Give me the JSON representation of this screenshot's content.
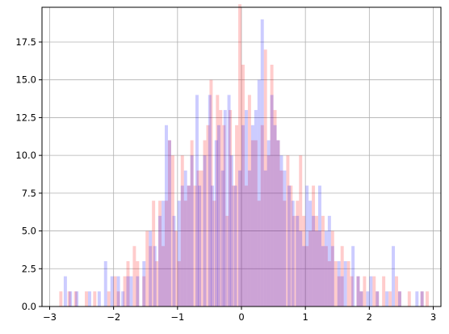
{
  "chart_data": {
    "type": "bar",
    "subtype": "overlaid-histogram",
    "title": "",
    "xlabel": "",
    "ylabel": "",
    "xlim": [
      -3.12,
      3.12
    ],
    "ylim": [
      0,
      19.8
    ],
    "grid": true,
    "bin_width": 0.05,
    "x_ticks": [
      {
        "value": -3,
        "label": "−3"
      },
      {
        "value": -2,
        "label": "−2"
      },
      {
        "value": -1,
        "label": "−1"
      },
      {
        "value": 0,
        "label": "0"
      },
      {
        "value": 1,
        "label": "1"
      },
      {
        "value": 2,
        "label": "2"
      },
      {
        "value": 3,
        "label": "3"
      }
    ],
    "y_ticks": [
      {
        "value": 0,
        "label": "0.0"
      },
      {
        "value": 2.5,
        "label": "2.5"
      },
      {
        "value": 5,
        "label": "5.0"
      },
      {
        "value": 7.5,
        "label": "7.5"
      },
      {
        "value": 10,
        "label": "10.0"
      },
      {
        "value": 12.5,
        "label": "12.5"
      },
      {
        "value": 15,
        "label": "15.0"
      },
      {
        "value": 17.5,
        "label": "17.5"
      }
    ],
    "series": [
      {
        "color": "#ff0000",
        "alpha": 0.2,
        "bins": [
          {
            "x": -2.85,
            "count": 1
          },
          {
            "x": -2.72,
            "count": 1
          },
          {
            "x": -2.62,
            "count": 1
          },
          {
            "x": -2.45,
            "count": 1
          },
          {
            "x": -2.32,
            "count": 1
          },
          {
            "x": -2.1,
            "count": 1
          },
          {
            "x": -2.0,
            "count": 2
          },
          {
            "x": -1.95,
            "count": 1
          },
          {
            "x": -1.85,
            "count": 2
          },
          {
            "x": -1.8,
            "count": 3
          },
          {
            "x": -1.7,
            "count": 4
          },
          {
            "x": -1.65,
            "count": 3
          },
          {
            "x": -1.55,
            "count": 2
          },
          {
            "x": -1.5,
            "count": 5
          },
          {
            "x": -1.45,
            "count": 4
          },
          {
            "x": -1.4,
            "count": 7
          },
          {
            "x": -1.35,
            "count": 3
          },
          {
            "x": -1.3,
            "count": 7
          },
          {
            "x": -1.25,
            "count": 4
          },
          {
            "x": -1.2,
            "count": 7
          },
          {
            "x": -1.15,
            "count": 11
          },
          {
            "x": -1.1,
            "count": 10
          },
          {
            "x": -1.05,
            "count": 5
          },
          {
            "x": -1.0,
            "count": 3
          },
          {
            "x": -0.95,
            "count": 10
          },
          {
            "x": -0.9,
            "count": 7
          },
          {
            "x": -0.85,
            "count": 8
          },
          {
            "x": -0.8,
            "count": 11
          },
          {
            "x": -0.75,
            "count": 8
          },
          {
            "x": -0.7,
            "count": 9
          },
          {
            "x": -0.65,
            "count": 9
          },
          {
            "x": -0.6,
            "count": 11
          },
          {
            "x": -0.55,
            "count": 12
          },
          {
            "x": -0.5,
            "count": 15
          },
          {
            "x": -0.45,
            "count": 7
          },
          {
            "x": -0.4,
            "count": 14
          },
          {
            "x": -0.35,
            "count": 13
          },
          {
            "x": -0.3,
            "count": 12
          },
          {
            "x": -0.25,
            "count": 6
          },
          {
            "x": -0.2,
            "count": 13
          },
          {
            "x": -0.15,
            "count": 8
          },
          {
            "x": -0.1,
            "count": 12
          },
          {
            "x": -0.05,
            "count": 20
          },
          {
            "x": 0.0,
            "count": 16
          },
          {
            "x": 0.05,
            "count": 8
          },
          {
            "x": 0.1,
            "count": 14
          },
          {
            "x": 0.15,
            "count": 11
          },
          {
            "x": 0.2,
            "count": 11
          },
          {
            "x": 0.25,
            "count": 7
          },
          {
            "x": 0.3,
            "count": 12
          },
          {
            "x": 0.35,
            "count": 17
          },
          {
            "x": 0.4,
            "count": 10
          },
          {
            "x": 0.45,
            "count": 16
          },
          {
            "x": 0.5,
            "count": 13
          },
          {
            "x": 0.55,
            "count": 11
          },
          {
            "x": 0.6,
            "count": 9
          },
          {
            "x": 0.65,
            "count": 7
          },
          {
            "x": 0.7,
            "count": 10
          },
          {
            "x": 0.75,
            "count": 8
          },
          {
            "x": 0.8,
            "count": 6
          },
          {
            "x": 0.85,
            "count": 7
          },
          {
            "x": 0.9,
            "count": 10
          },
          {
            "x": 0.95,
            "count": 6
          },
          {
            "x": 1.0,
            "count": 4
          },
          {
            "x": 1.05,
            "count": 5
          },
          {
            "x": 1.1,
            "count": 8
          },
          {
            "x": 1.15,
            "count": 6
          },
          {
            "x": 1.2,
            "count": 5
          },
          {
            "x": 1.25,
            "count": 6
          },
          {
            "x": 1.3,
            "count": 4
          },
          {
            "x": 1.35,
            "count": 3
          },
          {
            "x": 1.4,
            "count": 5
          },
          {
            "x": 1.45,
            "count": 3
          },
          {
            "x": 1.5,
            "count": 2
          },
          {
            "x": 1.55,
            "count": 4
          },
          {
            "x": 1.65,
            "count": 3
          },
          {
            "x": 1.7,
            "count": 2
          },
          {
            "x": 1.8,
            "count": 2
          },
          {
            "x": 1.85,
            "count": 1
          },
          {
            "x": 1.9,
            "count": 2
          },
          {
            "x": 2.05,
            "count": 2
          },
          {
            "x": 2.1,
            "count": 1
          },
          {
            "x": 2.2,
            "count": 2
          },
          {
            "x": 2.3,
            "count": 1
          },
          {
            "x": 2.4,
            "count": 2
          },
          {
            "x": 2.45,
            "count": 1
          },
          {
            "x": 2.6,
            "count": 1
          },
          {
            "x": 2.8,
            "count": 1
          },
          {
            "x": 2.88,
            "count": 1
          }
        ]
      },
      {
        "color": "#0000ff",
        "alpha": 0.2,
        "bins": [
          {
            "x": -2.78,
            "count": 2
          },
          {
            "x": -2.7,
            "count": 1
          },
          {
            "x": -2.6,
            "count": 1
          },
          {
            "x": -2.4,
            "count": 1
          },
          {
            "x": -2.25,
            "count": 1
          },
          {
            "x": -2.15,
            "count": 3
          },
          {
            "x": -2.05,
            "count": 2
          },
          {
            "x": -1.95,
            "count": 2
          },
          {
            "x": -1.88,
            "count": 1
          },
          {
            "x": -1.8,
            "count": 2
          },
          {
            "x": -1.75,
            "count": 2
          },
          {
            "x": -1.65,
            "count": 2
          },
          {
            "x": -1.55,
            "count": 3
          },
          {
            "x": -1.45,
            "count": 5
          },
          {
            "x": -1.38,
            "count": 4
          },
          {
            "x": -1.3,
            "count": 6
          },
          {
            "x": -1.25,
            "count": 7
          },
          {
            "x": -1.2,
            "count": 12
          },
          {
            "x": -1.15,
            "count": 11
          },
          {
            "x": -1.08,
            "count": 6
          },
          {
            "x": -1.0,
            "count": 7
          },
          {
            "x": -0.95,
            "count": 8
          },
          {
            "x": -0.9,
            "count": 9
          },
          {
            "x": -0.85,
            "count": 8
          },
          {
            "x": -0.8,
            "count": 10
          },
          {
            "x": -0.72,
            "count": 14
          },
          {
            "x": -0.68,
            "count": 8
          },
          {
            "x": -0.6,
            "count": 10
          },
          {
            "x": -0.52,
            "count": 14
          },
          {
            "x": -0.48,
            "count": 8
          },
          {
            "x": -0.42,
            "count": 11
          },
          {
            "x": -0.38,
            "count": 12
          },
          {
            "x": -0.32,
            "count": 9
          },
          {
            "x": -0.28,
            "count": 13
          },
          {
            "x": -0.22,
            "count": 14
          },
          {
            "x": -0.18,
            "count": 10
          },
          {
            "x": -0.12,
            "count": 8
          },
          {
            "x": -0.05,
            "count": 9
          },
          {
            "x": 0.0,
            "count": 12
          },
          {
            "x": 0.05,
            "count": 13
          },
          {
            "x": 0.1,
            "count": 9
          },
          {
            "x": 0.15,
            "count": 12
          },
          {
            "x": 0.2,
            "count": 13
          },
          {
            "x": 0.25,
            "count": 15
          },
          {
            "x": 0.3,
            "count": 19
          },
          {
            "x": 0.35,
            "count": 9
          },
          {
            "x": 0.4,
            "count": 11
          },
          {
            "x": 0.45,
            "count": 14
          },
          {
            "x": 0.5,
            "count": 12
          },
          {
            "x": 0.55,
            "count": 11
          },
          {
            "x": 0.6,
            "count": 10
          },
          {
            "x": 0.65,
            "count": 9
          },
          {
            "x": 0.72,
            "count": 8
          },
          {
            "x": 0.78,
            "count": 7
          },
          {
            "x": 0.85,
            "count": 6
          },
          {
            "x": 0.9,
            "count": 5
          },
          {
            "x": 0.95,
            "count": 4
          },
          {
            "x": 1.0,
            "count": 8
          },
          {
            "x": 1.05,
            "count": 7
          },
          {
            "x": 1.1,
            "count": 6
          },
          {
            "x": 1.15,
            "count": 5
          },
          {
            "x": 1.2,
            "count": 8
          },
          {
            "x": 1.25,
            "count": 4
          },
          {
            "x": 1.3,
            "count": 5
          },
          {
            "x": 1.35,
            "count": 6
          },
          {
            "x": 1.4,
            "count": 4
          },
          {
            "x": 1.5,
            "count": 3
          },
          {
            "x": 1.55,
            "count": 2
          },
          {
            "x": 1.6,
            "count": 3
          },
          {
            "x": 1.72,
            "count": 4
          },
          {
            "x": 1.8,
            "count": 2
          },
          {
            "x": 1.85,
            "count": 1
          },
          {
            "x": 1.95,
            "count": 1
          },
          {
            "x": 2.0,
            "count": 2
          },
          {
            "x": 2.1,
            "count": 1
          },
          {
            "x": 2.25,
            "count": 1
          },
          {
            "x": 2.35,
            "count": 4
          },
          {
            "x": 2.45,
            "count": 1
          },
          {
            "x": 2.72,
            "count": 1
          },
          {
            "x": 2.8,
            "count": 1
          }
        ]
      }
    ]
  }
}
